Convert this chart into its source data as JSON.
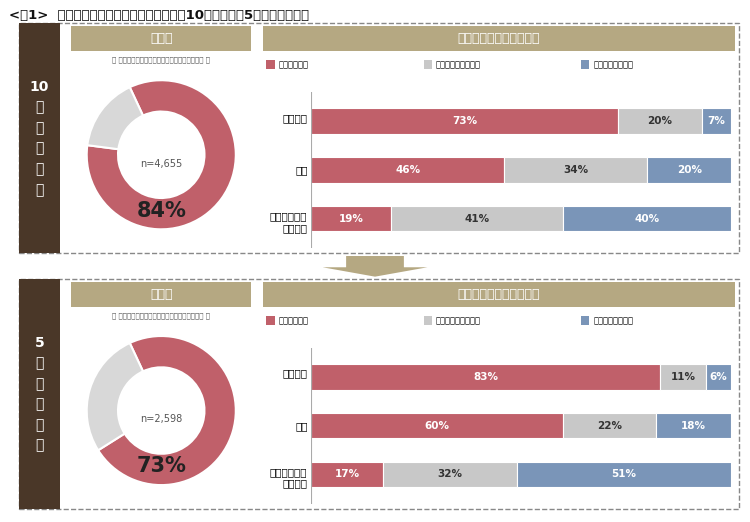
{
  "title": "<図1>  挙式率と結婚式に対するイメージ（10年前と直近5年以内の比較）",
  "section1_label": "10\n年\n前\nに\n結\n婚",
  "section2_label": "5\n年\n前\nに\n結\n婚",
  "donut_title": "挙式率",
  "donut_subtitle": "［ 結婚式、もしくは披露宴の実施＋実施予定者 ］",
  "bar_title": "結婚式に対するイメージ",
  "legend_labels": [
    "そう思う・計",
    "どちらともいえない",
    "そう思わない・計"
  ],
  "legend_colors": [
    "#c0606a",
    "#c8c8c8",
    "#7a95b8"
  ],
  "section1": {
    "n": "n=4,655",
    "pct": "84%",
    "donut_filled": 84,
    "bars": [
      {
        "label": "感動的な",
        "values": [
          73,
          20,
          7
        ]
      },
      {
        "label": "憐れ",
        "values": [
          46,
          34,
          20
        ]
      },
      {
        "label": "やらなければ\nいけない",
        "values": [
          19,
          41,
          40
        ]
      }
    ]
  },
  "section2": {
    "n": "n=2,598",
    "pct": "73%",
    "donut_filled": 73,
    "bars": [
      {
        "label": "感動的な",
        "values": [
          83,
          11,
          6
        ]
      },
      {
        "label": "憐れ",
        "values": [
          60,
          22,
          18
        ]
      },
      {
        "label": "やらなければ\nいけない",
        "values": [
          17,
          32,
          51
        ]
      }
    ]
  },
  "bar_colors": [
    "#c0606a",
    "#c8c8c8",
    "#7a95b8"
  ],
  "donut_color": "#c0606a",
  "donut_empty_color": "#d8d8d8",
  "section_bg_color": "#4a3728",
  "header_bg_color": "#b5a882",
  "outer_border_color": "#888888",
  "arrow_color": "#b5a882",
  "bg_white": "#ffffff"
}
